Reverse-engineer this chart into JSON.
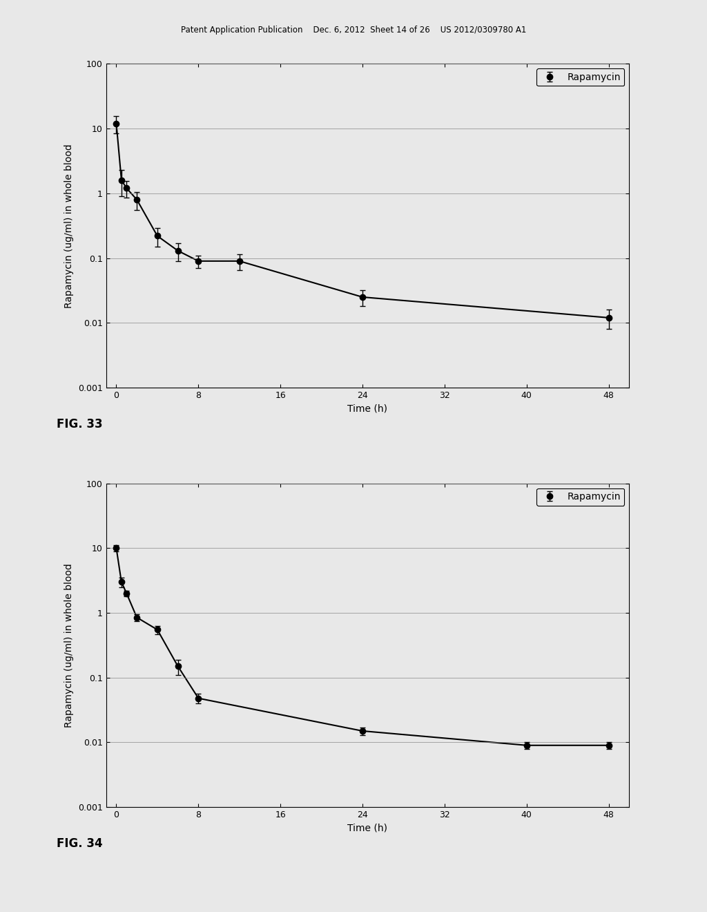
{
  "header_text": "Patent Application Publication    Dec. 6, 2012  Sheet 14 of 26    US 2012/0309780 A1",
  "fig33": {
    "label": "FIG. 33",
    "x": [
      0,
      0.5,
      1,
      2,
      4,
      6,
      8,
      12,
      24,
      48
    ],
    "y": [
      12.0,
      1.6,
      1.2,
      0.8,
      0.22,
      0.13,
      0.09,
      0.09,
      0.025,
      0.012
    ],
    "yerr_low": [
      3.5,
      0.7,
      0.35,
      0.25,
      0.07,
      0.04,
      0.02,
      0.025,
      0.007,
      0.004
    ],
    "yerr_high": [
      3.5,
      0.7,
      0.35,
      0.25,
      0.07,
      0.04,
      0.02,
      0.025,
      0.007,
      0.004
    ],
    "ylabel": "Rapamycin (ug/ml) in whole blood",
    "xlabel": "Time (h)",
    "ylim": [
      0.001,
      100
    ],
    "xlim": [
      -1,
      50
    ],
    "xticks": [
      0,
      8,
      16,
      24,
      32,
      40,
      48
    ],
    "yticks": [
      0.001,
      0.01,
      0.1,
      1,
      10,
      100
    ],
    "legend_label": "Rapamycin"
  },
  "fig34": {
    "label": "FIG. 34",
    "x": [
      0,
      0.5,
      1,
      2,
      4,
      6,
      8,
      24,
      40,
      48
    ],
    "y": [
      10.0,
      3.0,
      2.0,
      0.85,
      0.55,
      0.15,
      0.048,
      0.015,
      0.009,
      0.009
    ],
    "yerr_low": [
      1.0,
      0.5,
      0.2,
      0.1,
      0.08,
      0.04,
      0.008,
      0.002,
      0.001,
      0.001
    ],
    "yerr_high": [
      1.0,
      0.5,
      0.2,
      0.1,
      0.08,
      0.04,
      0.008,
      0.002,
      0.001,
      0.001
    ],
    "ylabel": "Rapamycin (ug/ml) in whole blood",
    "xlabel": "Time (h)",
    "ylim": [
      0.001,
      100
    ],
    "xlim": [
      -1,
      50
    ],
    "xticks": [
      0,
      8,
      16,
      24,
      32,
      40,
      48
    ],
    "yticks": [
      0.001,
      0.01,
      0.1,
      1,
      10,
      100
    ],
    "legend_label": "Rapamycin"
  },
  "line_color": "#000000",
  "marker": "o",
  "markersize": 6,
  "markerfacecolor": "#000000",
  "linewidth": 1.5,
  "elinewidth": 1.0,
  "capsize": 3,
  "background_color": "#e8e8e8",
  "plot_bg_color": "#e8e8e8",
  "grid_color": "#888888",
  "axis_fontsize": 10,
  "tick_fontsize": 9,
  "legend_fontsize": 10,
  "fig_label_fontsize": 12
}
